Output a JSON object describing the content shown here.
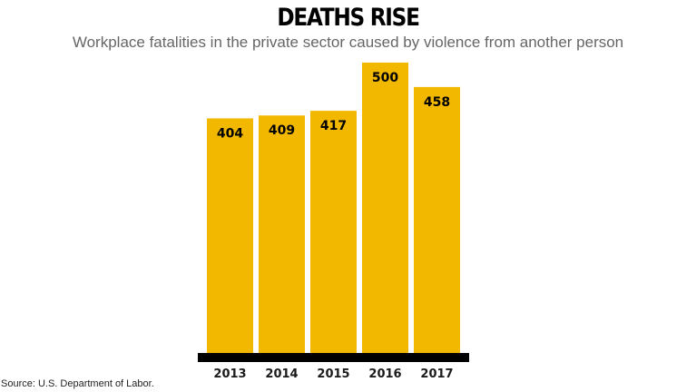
{
  "title": "DEATHS RISE",
  "subtitle": "Workplace fatalities in the private sector caused by violence from another person",
  "source": "Source: U.S. Department of Labor.",
  "colors": {
    "bar": "#F2B800",
    "baseline": "#000000"
  },
  "chart_data": {
    "type": "bar",
    "title": "DEATHS RISE",
    "subtitle": "Workplace fatalities in the private sector caused by violence from another person",
    "categories": [
      "2013",
      "2014",
      "2015",
      "2016",
      "2017"
    ],
    "values": [
      404,
      409,
      417,
      500,
      458
    ],
    "data_labels": [
      "404",
      "409",
      "417",
      "500",
      "458"
    ],
    "xlabel": "",
    "ylabel": "",
    "ylim": [
      0,
      500
    ],
    "grid": false,
    "legend": "none"
  }
}
